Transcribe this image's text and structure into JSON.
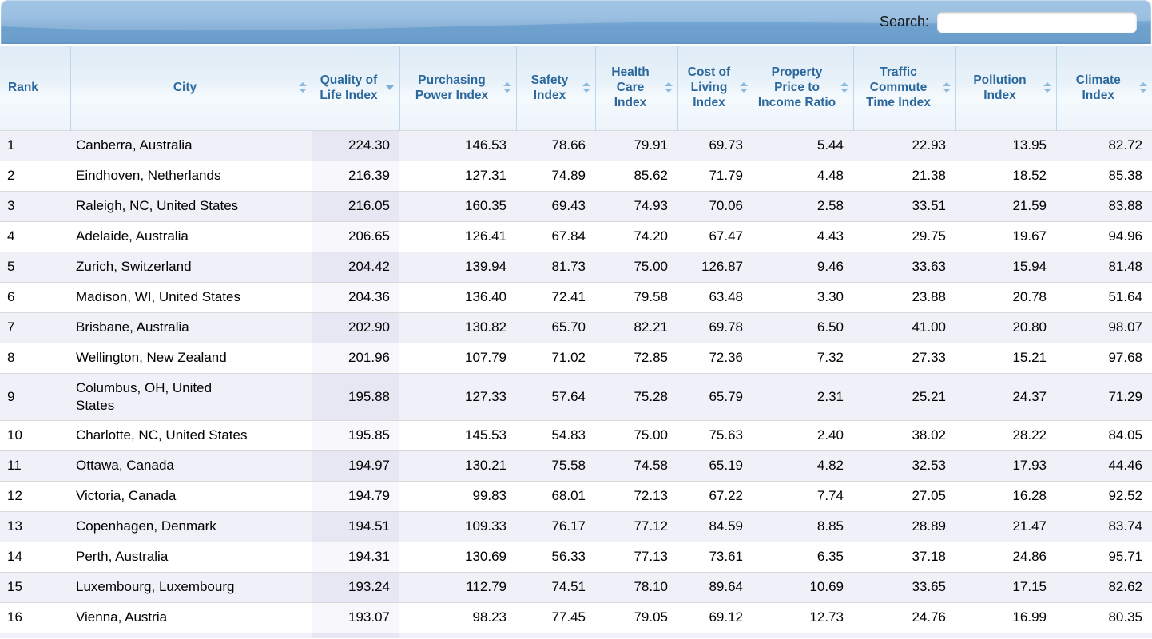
{
  "search": {
    "label": "Search:",
    "value": ""
  },
  "table": {
    "columns": [
      {
        "label": "Rank",
        "sort": "none"
      },
      {
        "label": "City",
        "sort": "both"
      },
      {
        "label": "Quality of Life Index",
        "sort": "desc"
      },
      {
        "label": "Purchasing Power Index",
        "sort": "both"
      },
      {
        "label": "Safety Index",
        "sort": "both"
      },
      {
        "label": "Health Care Index",
        "sort": "both"
      },
      {
        "label": "Cost of Living Index",
        "sort": "both"
      },
      {
        "label": "Property Price to Income Ratio",
        "sort": "both"
      },
      {
        "label": "Traffic Commute Time Index",
        "sort": "both"
      },
      {
        "label": "Pollution Index",
        "sort": "both"
      },
      {
        "label": "Climate Index",
        "sort": "both"
      }
    ],
    "rows": [
      {
        "rank": "1",
        "city": "Canberra, Australia",
        "values": [
          "224.30",
          "146.53",
          "78.66",
          "79.91",
          "69.73",
          "5.44",
          "22.93",
          "13.95",
          "82.72"
        ]
      },
      {
        "rank": "2",
        "city": "Eindhoven, Netherlands",
        "values": [
          "216.39",
          "127.31",
          "74.89",
          "85.62",
          "71.79",
          "4.48",
          "21.38",
          "18.52",
          "85.38"
        ]
      },
      {
        "rank": "3",
        "city": "Raleigh, NC, United States",
        "values": [
          "216.05",
          "160.35",
          "69.43",
          "74.93",
          "70.06",
          "2.58",
          "33.51",
          "21.59",
          "83.88"
        ]
      },
      {
        "rank": "4",
        "city": "Adelaide, Australia",
        "values": [
          "206.65",
          "126.41",
          "67.84",
          "74.20",
          "67.47",
          "4.43",
          "29.75",
          "19.67",
          "94.96"
        ]
      },
      {
        "rank": "5",
        "city": "Zurich, Switzerland",
        "values": [
          "204.42",
          "139.94",
          "81.73",
          "75.00",
          "126.87",
          "9.46",
          "33.63",
          "15.94",
          "81.48"
        ]
      },
      {
        "rank": "6",
        "city": "Madison, WI, United States",
        "values": [
          "204.36",
          "136.40",
          "72.41",
          "79.58",
          "63.48",
          "3.30",
          "23.88",
          "20.78",
          "51.64"
        ]
      },
      {
        "rank": "7",
        "city": "Brisbane, Australia",
        "values": [
          "202.90",
          "130.82",
          "65.70",
          "82.21",
          "69.78",
          "6.50",
          "41.00",
          "20.80",
          "98.07"
        ]
      },
      {
        "rank": "8",
        "city": "Wellington, New Zealand",
        "values": [
          "201.96",
          "107.79",
          "71.02",
          "72.85",
          "72.36",
          "7.32",
          "27.33",
          "15.21",
          "97.68"
        ]
      },
      {
        "rank": "9",
        "city": "Columbus, OH, United\nStates",
        "values": [
          "195.88",
          "127.33",
          "57.64",
          "75.28",
          "65.79",
          "2.31",
          "25.21",
          "24.37",
          "71.29"
        ]
      },
      {
        "rank": "10",
        "city": "Charlotte, NC, United States",
        "values": [
          "195.85",
          "145.53",
          "54.83",
          "75.00",
          "75.63",
          "2.40",
          "38.02",
          "28.22",
          "84.05"
        ]
      },
      {
        "rank": "11",
        "city": "Ottawa, Canada",
        "values": [
          "194.97",
          "130.21",
          "75.58",
          "74.58",
          "65.19",
          "4.82",
          "32.53",
          "17.93",
          "44.46"
        ]
      },
      {
        "rank": "12",
        "city": "Victoria, Canada",
        "values": [
          "194.79",
          "99.83",
          "68.01",
          "72.13",
          "67.22",
          "7.74",
          "27.05",
          "16.28",
          "92.52"
        ]
      },
      {
        "rank": "13",
        "city": "Copenhagen, Denmark",
        "values": [
          "194.51",
          "109.33",
          "76.17",
          "77.12",
          "84.59",
          "8.85",
          "28.89",
          "21.47",
          "83.74"
        ]
      },
      {
        "rank": "14",
        "city": "Perth, Australia",
        "values": [
          "194.31",
          "130.69",
          "56.33",
          "77.13",
          "73.61",
          "6.35",
          "37.18",
          "24.86",
          "95.71"
        ]
      },
      {
        "rank": "15",
        "city": "Luxembourg, Luxembourg",
        "values": [
          "193.24",
          "112.79",
          "74.51",
          "78.10",
          "89.64",
          "10.69",
          "33.65",
          "17.15",
          "82.62"
        ]
      },
      {
        "rank": "16",
        "city": "Vienna, Austria",
        "values": [
          "193.07",
          "98.23",
          "77.45",
          "79.05",
          "69.12",
          "12.73",
          "24.76",
          "16.99",
          "80.35"
        ]
      }
    ]
  },
  "colors": {
    "toolbar_blue_top": "#8ab6dc",
    "toolbar_blue_bottom": "#6c9ecc",
    "header_text": "#2c689c",
    "header_bg": "#e7f1f9",
    "sort_icon": "#8cb9e0",
    "row_stripe": "#f0f0f9",
    "sorted_column_stripe": "#e7e7f3"
  }
}
